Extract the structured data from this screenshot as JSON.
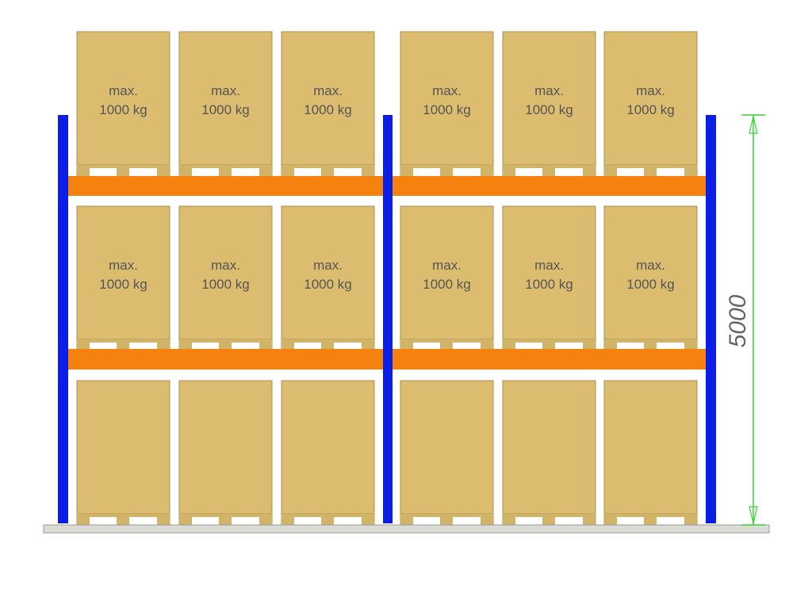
{
  "dimension": {
    "label": "5000"
  },
  "top_level": {
    "boxes": [
      {
        "line1": "max.",
        "line2": "1000 kg"
      },
      {
        "line1": "max.",
        "line2": "1000 kg"
      },
      {
        "line1": "max.",
        "line2": "1000 kg"
      },
      {
        "line1": "max.",
        "line2": "1000 kg"
      },
      {
        "line1": "max.",
        "line2": "1000 kg"
      },
      {
        "line1": "max.",
        "line2": "1000 kg"
      }
    ]
  },
  "middle_level": {
    "boxes": [
      {
        "line1": "max.",
        "line2": "1000 kg"
      },
      {
        "line1": "max.",
        "line2": "1000 kg"
      },
      {
        "line1": "max.",
        "line2": "1000 kg"
      },
      {
        "line1": "max.",
        "line2": "1000 kg"
      },
      {
        "line1": "max.",
        "line2": "1000 kg"
      },
      {
        "line1": "max.",
        "line2": "1000 kg"
      }
    ]
  }
}
